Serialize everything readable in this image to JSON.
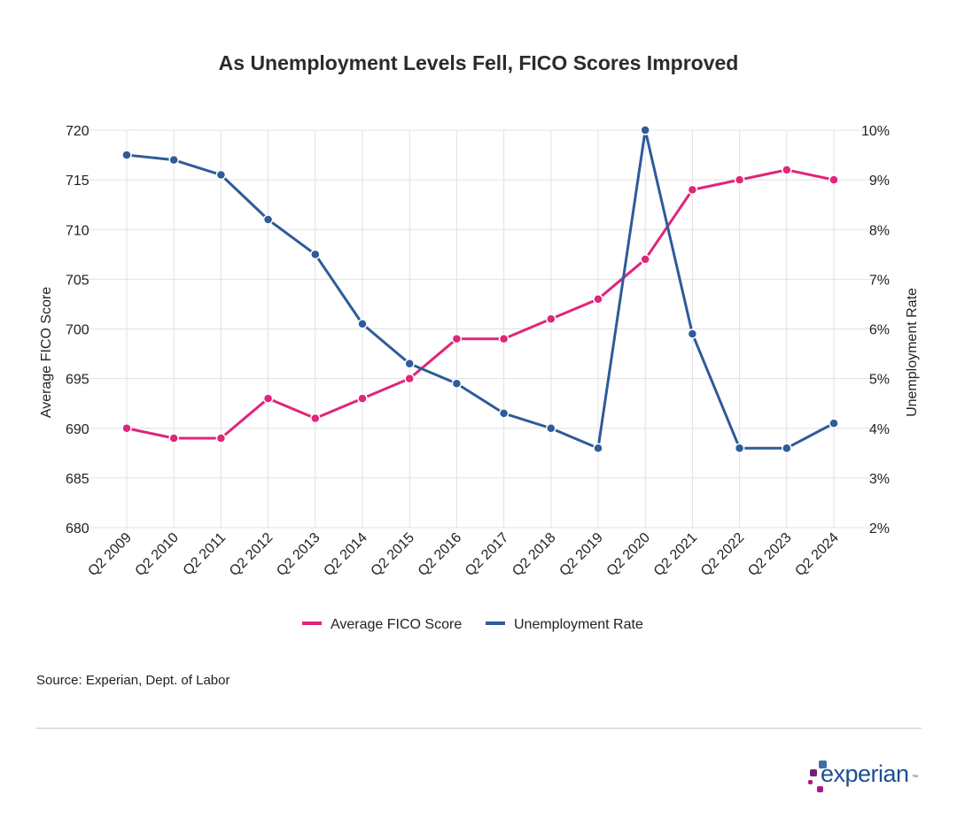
{
  "chart_data": {
    "type": "line",
    "title": "As Unemployment Levels Fell, FICO Scores Improved",
    "categories": [
      "Q2 2009",
      "Q2 2010",
      "Q2 2011",
      "Q2 2012",
      "Q2 2013",
      "Q2 2014",
      "Q2 2015",
      "Q2 2016",
      "Q2 2017",
      "Q2 2018",
      "Q2 2019",
      "Q2 2020",
      "Q2 2021",
      "Q2 2022",
      "Q2 2023",
      "Q2 2024"
    ],
    "ylabel_left": "Average FICO Score",
    "ylabel_right": "Unemployment Rate",
    "ylim_left": [
      680,
      720
    ],
    "ylim_right": [
      2,
      10
    ],
    "yticks_left": [
      680,
      685,
      690,
      695,
      700,
      705,
      710,
      715,
      720
    ],
    "yticks_right": [
      "2%",
      "3%",
      "4%",
      "5%",
      "6%",
      "7%",
      "8%",
      "9%",
      "10%"
    ],
    "grid": true,
    "legend_position": "bottom",
    "series": [
      {
        "name": "Average FICO Score",
        "axis": "left",
        "color": "#e0257a",
        "values": [
          690,
          689,
          689,
          693,
          691,
          693,
          695,
          699,
          699,
          701,
          703,
          707,
          714,
          715,
          716,
          715
        ]
      },
      {
        "name": "Unemployment Rate",
        "axis": "right",
        "color": "#2e5b9a",
        "values": [
          9.5,
          9.4,
          9.1,
          8.2,
          7.5,
          6.1,
          5.3,
          4.9,
          4.3,
          4.0,
          3.6,
          10.0,
          5.9,
          3.6,
          3.6,
          4.1
        ]
      }
    ]
  },
  "source": "Source: Experian, Dept. of Labor",
  "brand": {
    "name": "experian",
    "trademark": "™",
    "colors": {
      "blue": "#1d4f91",
      "purple": "#6d2077",
      "magenta": "#af1685",
      "light_blue": "#426da9"
    }
  }
}
